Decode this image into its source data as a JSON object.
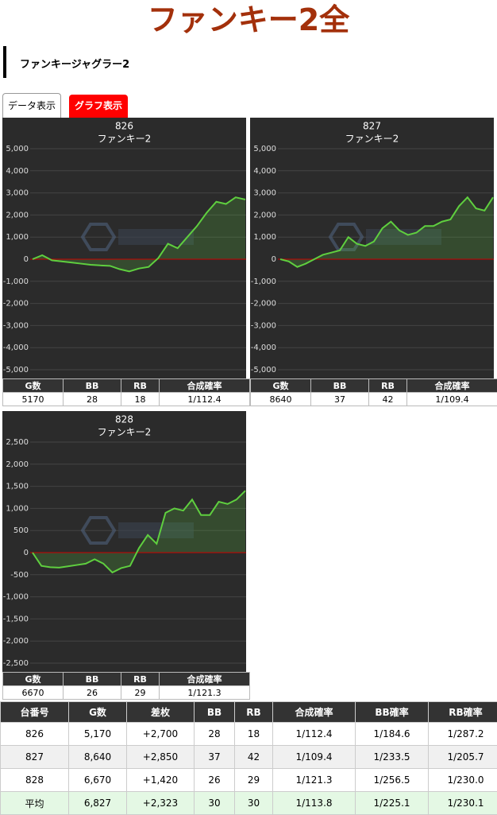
{
  "header": {
    "title": "ファンキー2全"
  },
  "section": {
    "title": "ファンキージャグラー2"
  },
  "tabs": [
    "データ表示",
    "グラフ表示"
  ],
  "panels": [
    {
      "number": "826",
      "name": "ファンキー2",
      "chart": {
        "type": "line",
        "color": "#5fcf3f",
        "ylim": [
          -5000,
          5000
        ],
        "yticks": [
          {
            "value": -5000,
            "label": "-5,000"
          },
          {
            "value": -4000,
            "label": "-4,000"
          },
          {
            "value": -3000,
            "label": "-3,000"
          },
          {
            "value": -2000,
            "label": "-2,000"
          },
          {
            "value": -1000,
            "label": "-1,000"
          },
          0,
          {
            "value": 1000,
            "label": "1,000"
          },
          {
            "value": 2000,
            "label": "2,000"
          },
          {
            "value": 3000,
            "label": "3,000"
          },
          {
            "value": 4000,
            "label": "4,000"
          },
          {
            "value": 5000,
            "label": "5,000"
          }
        ],
        "values": [
          0,
          180,
          -50,
          -100,
          -150,
          -200,
          -250,
          -280,
          -300,
          -450,
          -550,
          -420,
          -350,
          50,
          700,
          500,
          1000,
          1500,
          2100,
          2600,
          2500,
          2800,
          2700
        ]
      },
      "stats": {
        "headers": [
          "G数",
          "BB",
          "RB",
          "合成確率"
        ],
        "values": [
          "5170",
          "28",
          "18",
          "1/112.4"
        ]
      }
    },
    {
      "number": "827",
      "name": "ファンキー2",
      "chart": {
        "type": "line",
        "color": "#5fcf3f",
        "ylim": [
          -5000,
          5000
        ],
        "yticks": [
          {
            "value": -5000,
            "label": "-5,000"
          },
          {
            "value": -4000,
            "label": "-4,000"
          },
          {
            "value": -3000,
            "label": "-3,000"
          },
          {
            "value": -2000,
            "label": "-2,000"
          },
          {
            "value": -1000,
            "label": "-1,000"
          },
          0,
          {
            "value": 1000,
            "label": "1,000"
          },
          {
            "value": 2000,
            "label": "2,000"
          },
          {
            "value": 3000,
            "label": "3,000"
          },
          {
            "value": 4000,
            "label": "4,000"
          },
          {
            "value": 5000,
            "label": "5,000"
          }
        ],
        "values": [
          0,
          -100,
          -350,
          -200,
          0,
          200,
          300,
          400,
          1000,
          700,
          600,
          800,
          1400,
          1700,
          1300,
          1100,
          1200,
          1500,
          1500,
          1700,
          1800,
          2400,
          2800,
          2300,
          2200,
          2800
        ]
      },
      "stats": {
        "headers": [
          "G数",
          "BB",
          "RB",
          "合成確率"
        ],
        "values": [
          "8640",
          "37",
          "42",
          "1/109.4"
        ]
      }
    },
    {
      "number": "828",
      "name": "ファンキー2",
      "chart": {
        "type": "line",
        "color": "#5fcf3f",
        "ylim": [
          -2500,
          2500
        ],
        "yticks": [
          {
            "value": -2500,
            "label": "-2,500"
          },
          {
            "value": -2000,
            "label": "-2,000"
          },
          {
            "value": -1500,
            "label": "-1,500"
          },
          {
            "value": -1000,
            "label": "-1,000"
          },
          -500,
          0,
          500,
          {
            "value": 1000,
            "label": "1,000"
          },
          {
            "value": 1500,
            "label": "1,500"
          },
          {
            "value": 2000,
            "label": "2,000"
          },
          {
            "value": 2500,
            "label": "2,500"
          }
        ],
        "values": [
          0,
          -300,
          -330,
          -340,
          -310,
          -280,
          -250,
          -150,
          -250,
          -450,
          -350,
          -300,
          100,
          400,
          200,
          900,
          1000,
          950,
          1200,
          850,
          850,
          1150,
          1100,
          1200,
          1400
        ]
      },
      "stats": {
        "headers": [
          "G数",
          "BB",
          "RB",
          "合成確率"
        ],
        "values": [
          "6670",
          "26",
          "29",
          "1/121.3"
        ]
      }
    }
  ],
  "summary": {
    "headers": [
      "台番号",
      "G数",
      "差枚",
      "BB",
      "RB",
      "合成確率",
      "BB確率",
      "RB確率"
    ],
    "rows": [
      [
        "826",
        "5,170",
        "+2,700",
        "28",
        "18",
        "1/112.4",
        "1/184.6",
        "1/287.2"
      ],
      [
        "827",
        "8,640",
        "+2,850",
        "37",
        "42",
        "1/109.4",
        "1/233.5",
        "1/205.7"
      ],
      [
        "828",
        "6,670",
        "+1,420",
        "26",
        "29",
        "1/121.3",
        "1/256.5",
        "1/230.0"
      ],
      [
        "平均",
        "6,827",
        "+2,323",
        "30",
        "30",
        "1/113.8",
        "1/225.1",
        "1/230.1"
      ]
    ]
  }
}
